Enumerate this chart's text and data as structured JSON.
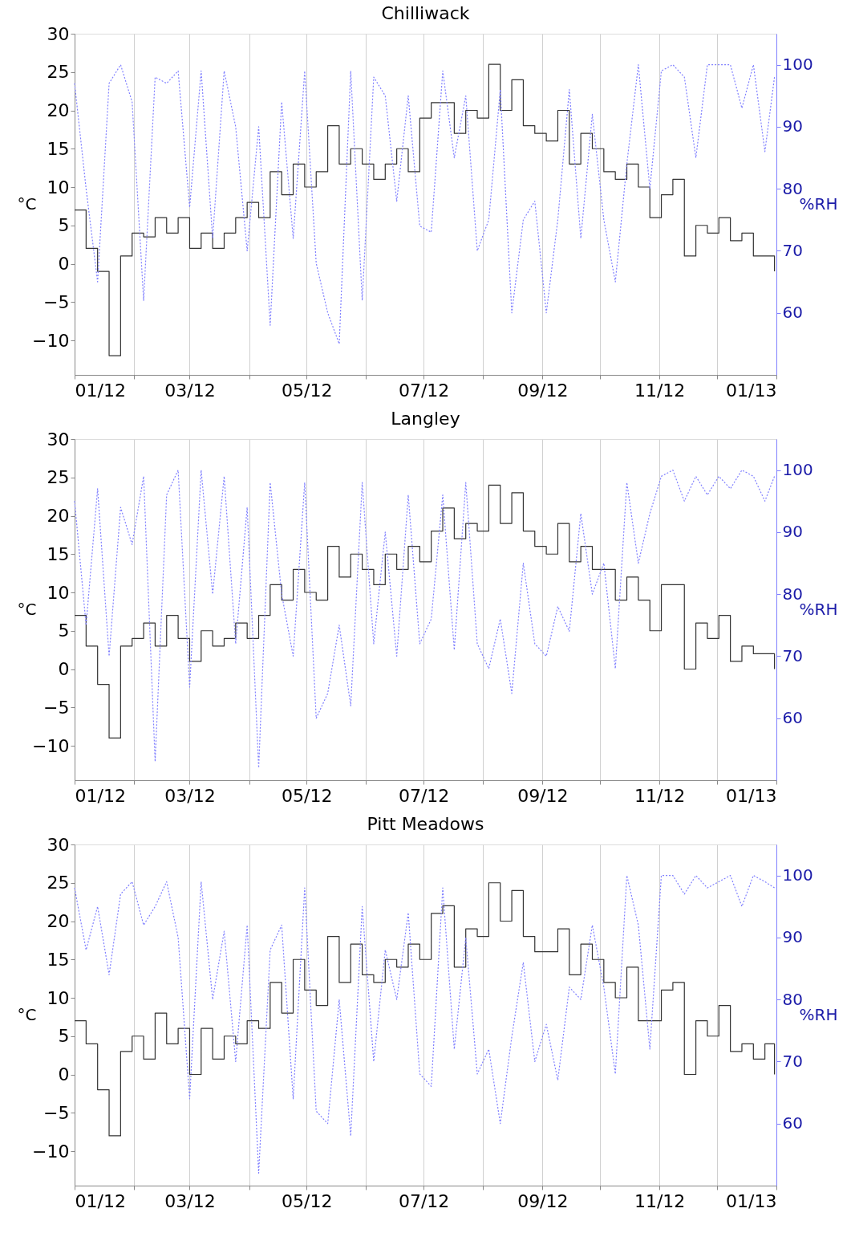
{
  "chart_data": [
    {
      "type": "step",
      "title": "Chilliwack",
      "ylabel": "°C",
      "y2label": "%RH",
      "grid": "x",
      "xlim": [
        "2012-01-01",
        "2013-01-01"
      ],
      "xticks": [
        {
          "value": "2012-01-01",
          "label": "01/12"
        },
        {
          "value": "2012-02-01",
          "label": null
        },
        {
          "value": "2012-03-01",
          "label": "03/12"
        },
        {
          "value": "2012-04-01",
          "label": null
        },
        {
          "value": "2012-05-01",
          "label": "05/12"
        },
        {
          "value": "2012-06-01",
          "label": null
        },
        {
          "value": "2012-07-01",
          "label": "07/12"
        },
        {
          "value": "2012-08-01",
          "label": null
        },
        {
          "value": "2012-09-01",
          "label": "09/12"
        },
        {
          "value": "2012-10-01",
          "label": null
        },
        {
          "value": "2012-11-01",
          "label": "11/12"
        },
        {
          "value": "2012-12-01",
          "label": null
        },
        {
          "value": "2013-01-01",
          "label": "01/13"
        }
      ],
      "ylim": [
        -14.5,
        30
      ],
      "yticks": [
        -10,
        -5,
        0,
        5,
        10,
        15,
        20,
        25,
        30
      ],
      "y2lim": [
        50,
        105
      ],
      "y2ticks": [
        60,
        70,
        80,
        90,
        100
      ],
      "x": [
        "2012-01-01",
        "2012-01-07",
        "2012-01-13",
        "2012-01-19",
        "2012-01-25",
        "2012-01-31",
        "2012-02-06",
        "2012-02-12",
        "2012-02-18",
        "2012-02-24",
        "2012-03-01",
        "2012-03-07",
        "2012-03-13",
        "2012-03-19",
        "2012-03-25",
        "2012-03-31",
        "2012-04-06",
        "2012-04-12",
        "2012-04-18",
        "2012-04-24",
        "2012-04-30",
        "2012-05-06",
        "2012-05-12",
        "2012-05-18",
        "2012-05-24",
        "2012-05-30",
        "2012-06-05",
        "2012-06-11",
        "2012-06-17",
        "2012-06-23",
        "2012-06-29",
        "2012-07-05",
        "2012-07-11",
        "2012-07-17",
        "2012-07-23",
        "2012-07-29",
        "2012-08-04",
        "2012-08-10",
        "2012-08-16",
        "2012-08-22",
        "2012-08-28",
        "2012-09-03",
        "2012-09-09",
        "2012-09-15",
        "2012-09-21",
        "2012-09-27",
        "2012-10-03",
        "2012-10-09",
        "2012-10-15",
        "2012-10-21",
        "2012-10-27",
        "2012-11-02",
        "2012-11-08",
        "2012-11-14",
        "2012-11-20",
        "2012-11-26",
        "2012-12-02",
        "2012-12-08",
        "2012-12-14",
        "2012-12-20",
        "2012-12-26",
        "2012-12-31"
      ],
      "series": [
        {
          "color": "#333333",
          "values": [
            7,
            2,
            -1,
            -12,
            1,
            4,
            3.5,
            6,
            4,
            6,
            2,
            4,
            2,
            4,
            6,
            8,
            6,
            12,
            9,
            13,
            10,
            12,
            18,
            13,
            15,
            13,
            11,
            13,
            15,
            12,
            19,
            21,
            21,
            17,
            20,
            19,
            26,
            20,
            24,
            18,
            17,
            16,
            20,
            13,
            17,
            15,
            12,
            11,
            13,
            10,
            6,
            9,
            11,
            1,
            5,
            4,
            6,
            3,
            4,
            1,
            1,
            -1
          ]
        },
        {
          "type": "line",
          "axis": "y2",
          "line_style": "dotted",
          "color": "#8080ff",
          "values": [
            97,
            80,
            65,
            97,
            100,
            94,
            62,
            98,
            97,
            99,
            77,
            99,
            72,
            99,
            90,
            70,
            90,
            58,
            94,
            72,
            99,
            68,
            60,
            55,
            99,
            62,
            98,
            95,
            78,
            95,
            74,
            73,
            99,
            85,
            95,
            70,
            75,
            96,
            60,
            75,
            78,
            60,
            75,
            96,
            72,
            92,
            75,
            65,
            84,
            100,
            80,
            99,
            100,
            98,
            85,
            100,
            100,
            100,
            93,
            100,
            86,
            98
          ]
        }
      ]
    },
    {
      "type": "step",
      "title": "Langley",
      "ylabel": "°C",
      "y2label": "%RH",
      "grid": "x",
      "xlim": [
        "2012-01-01",
        "2013-01-01"
      ],
      "xticks": [
        {
          "value": "2012-01-01",
          "label": "01/12"
        },
        {
          "value": "2012-02-01",
          "label": null
        },
        {
          "value": "2012-03-01",
          "label": "03/12"
        },
        {
          "value": "2012-04-01",
          "label": null
        },
        {
          "value": "2012-05-01",
          "label": "05/12"
        },
        {
          "value": "2012-06-01",
          "label": null
        },
        {
          "value": "2012-07-01",
          "label": "07/12"
        },
        {
          "value": "2012-08-01",
          "label": null
        },
        {
          "value": "2012-09-01",
          "label": "09/12"
        },
        {
          "value": "2012-10-01",
          "label": null
        },
        {
          "value": "2012-11-01",
          "label": "11/12"
        },
        {
          "value": "2012-12-01",
          "label": null
        },
        {
          "value": "2013-01-01",
          "label": "01/13"
        }
      ],
      "ylim": [
        -14.5,
        30
      ],
      "yticks": [
        -10,
        -5,
        0,
        5,
        10,
        15,
        20,
        25,
        30
      ],
      "y2lim": [
        50,
        105
      ],
      "y2ticks": [
        60,
        70,
        80,
        90,
        100
      ],
      "x": [
        "2012-01-01",
        "2012-01-07",
        "2012-01-13",
        "2012-01-19",
        "2012-01-25",
        "2012-01-31",
        "2012-02-06",
        "2012-02-12",
        "2012-02-18",
        "2012-02-24",
        "2012-03-01",
        "2012-03-07",
        "2012-03-13",
        "2012-03-19",
        "2012-03-25",
        "2012-03-31",
        "2012-04-06",
        "2012-04-12",
        "2012-04-18",
        "2012-04-24",
        "2012-04-30",
        "2012-05-06",
        "2012-05-12",
        "2012-05-18",
        "2012-05-24",
        "2012-05-30",
        "2012-06-05",
        "2012-06-11",
        "2012-06-17",
        "2012-06-23",
        "2012-06-29",
        "2012-07-05",
        "2012-07-11",
        "2012-07-17",
        "2012-07-23",
        "2012-07-29",
        "2012-08-04",
        "2012-08-10",
        "2012-08-16",
        "2012-08-22",
        "2012-08-28",
        "2012-09-03",
        "2012-09-09",
        "2012-09-15",
        "2012-09-21",
        "2012-09-27",
        "2012-10-03",
        "2012-10-09",
        "2012-10-15",
        "2012-10-21",
        "2012-10-27",
        "2012-11-02",
        "2012-11-08",
        "2012-11-14",
        "2012-11-20",
        "2012-11-26",
        "2012-12-02",
        "2012-12-08",
        "2012-12-14",
        "2012-12-20",
        "2012-12-26",
        "2012-12-31"
      ],
      "series": [
        {
          "color": "#333333",
          "values": [
            7,
            3,
            -2,
            -9,
            3,
            4,
            6,
            3,
            7,
            4,
            1,
            5,
            3,
            4,
            6,
            4,
            7,
            11,
            9,
            13,
            10,
            9,
            16,
            12,
            15,
            13,
            11,
            15,
            13,
            16,
            14,
            18,
            21,
            17,
            19,
            18,
            24,
            19,
            23,
            18,
            16,
            15,
            19,
            14,
            16,
            13,
            13,
            9,
            12,
            9,
            5,
            11,
            11,
            0,
            6,
            4,
            7,
            1,
            3,
            2,
            2,
            0
          ]
        },
        {
          "type": "line",
          "axis": "y2",
          "line_style": "dotted",
          "color": "#8080ff",
          "values": [
            95,
            75,
            97,
            70,
            94,
            88,
            99,
            53,
            96,
            100,
            65,
            100,
            80,
            99,
            72,
            94,
            52,
            98,
            80,
            70,
            98,
            60,
            64,
            75,
            62,
            98,
            72,
            90,
            70,
            96,
            72,
            76,
            96,
            71,
            98,
            72,
            68,
            76,
            64,
            85,
            72,
            70,
            78,
            74,
            93,
            80,
            85,
            68,
            98,
            85,
            93,
            99,
            100,
            95,
            99,
            96,
            99,
            97,
            100,
            99,
            95,
            99
          ]
        }
      ]
    },
    {
      "type": "step",
      "title": "Pitt Meadows",
      "ylabel": "°C",
      "y2label": "%RH",
      "grid": "x",
      "xlim": [
        "2012-01-01",
        "2013-01-01"
      ],
      "xticks": [
        {
          "value": "2012-01-01",
          "label": "01/12"
        },
        {
          "value": "2012-02-01",
          "label": null
        },
        {
          "value": "2012-03-01",
          "label": "03/12"
        },
        {
          "value": "2012-04-01",
          "label": null
        },
        {
          "value": "2012-05-01",
          "label": "05/12"
        },
        {
          "value": "2012-06-01",
          "label": null
        },
        {
          "value": "2012-07-01",
          "label": "07/12"
        },
        {
          "value": "2012-08-01",
          "label": null
        },
        {
          "value": "2012-09-01",
          "label": "09/12"
        },
        {
          "value": "2012-10-01",
          "label": null
        },
        {
          "value": "2012-11-01",
          "label": "11/12"
        },
        {
          "value": "2012-12-01",
          "label": null
        },
        {
          "value": "2013-01-01",
          "label": "01/13"
        }
      ],
      "ylim": [
        -14.5,
        30
      ],
      "yticks": [
        -10,
        -5,
        0,
        5,
        10,
        15,
        20,
        25,
        30
      ],
      "y2lim": [
        50,
        105
      ],
      "y2ticks": [
        60,
        70,
        80,
        90,
        100
      ],
      "x": [
        "2012-01-01",
        "2012-01-07",
        "2012-01-13",
        "2012-01-19",
        "2012-01-25",
        "2012-01-31",
        "2012-02-06",
        "2012-02-12",
        "2012-02-18",
        "2012-02-24",
        "2012-03-01",
        "2012-03-07",
        "2012-03-13",
        "2012-03-19",
        "2012-03-25",
        "2012-03-31",
        "2012-04-06",
        "2012-04-12",
        "2012-04-18",
        "2012-04-24",
        "2012-04-30",
        "2012-05-06",
        "2012-05-12",
        "2012-05-18",
        "2012-05-24",
        "2012-05-30",
        "2012-06-05",
        "2012-06-11",
        "2012-06-17",
        "2012-06-23",
        "2012-06-29",
        "2012-07-05",
        "2012-07-11",
        "2012-07-17",
        "2012-07-23",
        "2012-07-29",
        "2012-08-04",
        "2012-08-10",
        "2012-08-16",
        "2012-08-22",
        "2012-08-28",
        "2012-09-03",
        "2012-09-09",
        "2012-09-15",
        "2012-09-21",
        "2012-09-27",
        "2012-10-03",
        "2012-10-09",
        "2012-10-15",
        "2012-10-21",
        "2012-10-27",
        "2012-11-02",
        "2012-11-08",
        "2012-11-14",
        "2012-11-20",
        "2012-11-26",
        "2012-12-02",
        "2012-12-08",
        "2012-12-14",
        "2012-12-20",
        "2012-12-26",
        "2012-12-31"
      ],
      "series": [
        {
          "color": "#333333",
          "values": [
            7,
            4,
            -2,
            -8,
            3,
            5,
            2,
            8,
            4,
            6,
            0,
            6,
            2,
            5,
            4,
            7,
            6,
            12,
            8,
            15,
            11,
            9,
            18,
            12,
            17,
            13,
            12,
            15,
            14,
            17,
            15,
            21,
            22,
            14,
            19,
            18,
            25,
            20,
            24,
            18,
            16,
            16,
            19,
            13,
            17,
            15,
            12,
            10,
            14,
            7,
            7,
            11,
            12,
            0,
            7,
            5,
            9,
            3,
            4,
            2,
            4,
            0
          ]
        },
        {
          "type": "line",
          "axis": "y2",
          "line_style": "dotted",
          "color": "#8080ff",
          "values": [
            98,
            88,
            95,
            84,
            97,
            99,
            92,
            95,
            99,
            90,
            64,
            99,
            80,
            91,
            70,
            92,
            52,
            88,
            92,
            64,
            98,
            62,
            60,
            80,
            58,
            95,
            70,
            88,
            80,
            94,
            68,
            66,
            98,
            72,
            90,
            68,
            72,
            60,
            74,
            86,
            70,
            76,
            67,
            82,
            80,
            92,
            82,
            68,
            100,
            92,
            72,
            100,
            100,
            97,
            100,
            98,
            99,
            100,
            95,
            100,
            99,
            98
          ]
        }
      ]
    }
  ]
}
